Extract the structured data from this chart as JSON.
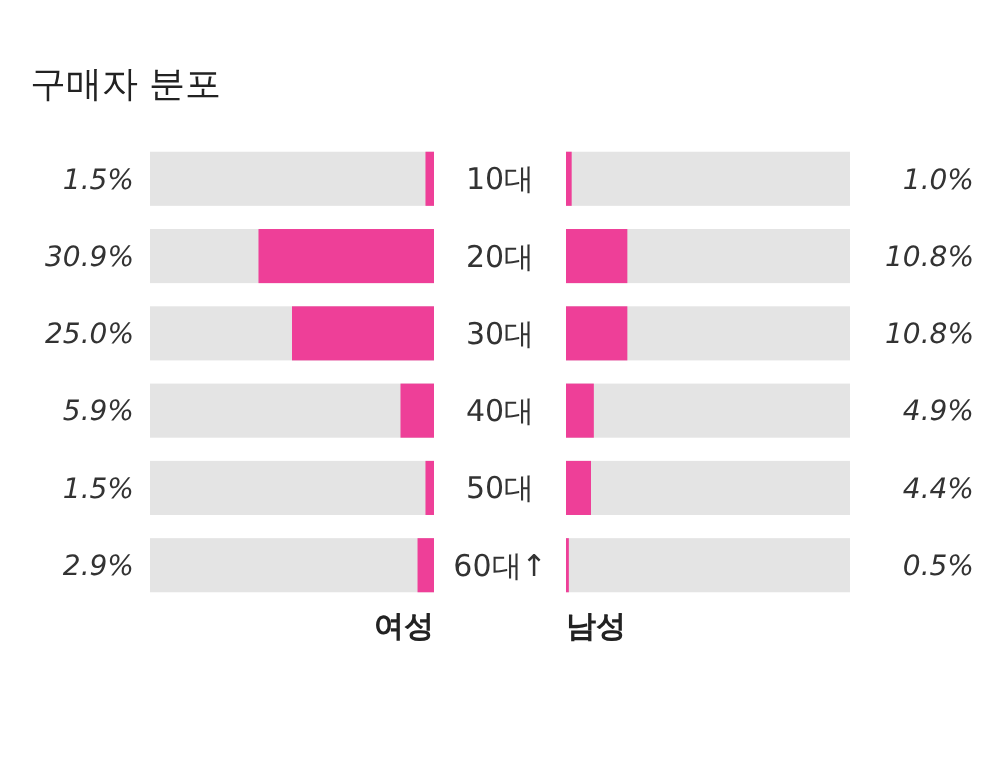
{
  "chart_data": [
    {
      "type": "bar",
      "title": "구매자 분포",
      "orientation": "horizontal",
      "categories": [
        "10대",
        "20대",
        "30대",
        "40대",
        "50대",
        "60대↑"
      ],
      "xlim": [
        50,
        0
      ],
      "series": [
        {
          "name": "여성",
          "color": "#ee3f98",
          "values": [
            1.5,
            30.9,
            25.0,
            5.9,
            1.5,
            2.9
          ],
          "value_labels": [
            "1.5%",
            "30.9%",
            "25.0%",
            "5.9%",
            "1.5%",
            "2.9%"
          ]
        }
      ]
    },
    {
      "type": "bar",
      "orientation": "horizontal",
      "categories": [
        null,
        null,
        null,
        null,
        null,
        null
      ],
      "xlim": [
        0,
        50
      ],
      "series": [
        {
          "name": "남성",
          "color": "#ee3f98",
          "values": [
            1.0,
            10.8,
            10.8,
            4.9,
            4.4,
            0.5
          ],
          "value_labels": [
            "1.0%",
            "10.8%",
            "10.8%",
            "4.9%",
            "4.4%",
            "0.5%"
          ]
        }
      ]
    }
  ]
}
